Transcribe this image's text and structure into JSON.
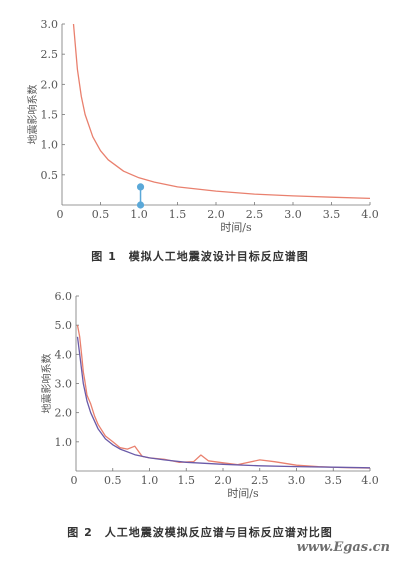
{
  "chart_data": [
    {
      "type": "line",
      "ylabel": "地震影响系数",
      "xlabel": "时间/s",
      "xlim": [
        0,
        4.0
      ],
      "ylim": [
        0,
        3.0
      ],
      "xticks": [
        "0.5",
        "1.0",
        "1.5",
        "2.0",
        "2.5",
        "3.0",
        "3.5",
        "4.0"
      ],
      "yticks": [
        "0.5",
        "1.0",
        "1.5",
        "2.0",
        "2.5",
        "3.0"
      ],
      "series": [
        {
          "color": "#e9806e",
          "x": [
            0.15,
            0.2,
            0.25,
            0.3,
            0.4,
            0.5,
            0.6,
            0.8,
            1.0,
            1.2,
            1.5,
            2.0,
            2.5,
            3.0,
            3.5,
            4.0
          ],
          "y": [
            3.0,
            2.25,
            1.8,
            1.5,
            1.13,
            0.9,
            0.75,
            0.56,
            0.45,
            0.38,
            0.3,
            0.23,
            0.18,
            0.15,
            0.13,
            0.11
          ]
        }
      ],
      "markers": [
        {
          "x": 1.02,
          "y": 0.3,
          "color": "#5aa8d8"
        },
        {
          "x": 1.02,
          "y": 0.0,
          "color": "#5aa8d8"
        }
      ],
      "caption": "图 1　模拟人工地震波设计目标反应谱图"
    },
    {
      "type": "line",
      "ylabel": "地震影响系数",
      "xlabel": "时间/s",
      "xlim": [
        0,
        4.0
      ],
      "ylim": [
        0,
        6.0
      ],
      "xticks": [
        "0.5",
        "1.0",
        "1.5",
        "2.0",
        "2.5",
        "3.0",
        "3.5",
        "4.0"
      ],
      "yticks": [
        "1.0",
        "2.0",
        "3.0",
        "4.0",
        "5.0",
        "6.0"
      ],
      "series": [
        {
          "color": "#e9806e",
          "x": [
            0.02,
            0.05,
            0.08,
            0.1,
            0.12,
            0.15,
            0.2,
            0.25,
            0.3,
            0.4,
            0.5,
            0.6,
            0.7,
            0.8,
            0.9,
            1.0,
            1.2,
            1.4,
            1.6,
            1.7,
            1.8,
            2.0,
            2.2,
            2.5,
            2.7,
            3.0,
            3.3,
            3.6,
            4.0
          ],
          "y": [
            5.0,
            4.6,
            3.9,
            3.4,
            3.1,
            2.6,
            2.3,
            1.9,
            1.6,
            1.2,
            1.0,
            0.8,
            0.75,
            0.85,
            0.5,
            0.45,
            0.4,
            0.3,
            0.32,
            0.55,
            0.35,
            0.28,
            0.22,
            0.38,
            0.32,
            0.2,
            0.15,
            0.12,
            0.1
          ]
        },
        {
          "color": "#6a5aa8",
          "x": [
            0.02,
            0.05,
            0.1,
            0.15,
            0.2,
            0.3,
            0.4,
            0.5,
            0.6,
            0.8,
            1.0,
            1.2,
            1.5,
            2.0,
            2.5,
            3.0,
            3.5,
            4.0
          ],
          "y": [
            4.6,
            4.0,
            3.0,
            2.4,
            2.0,
            1.45,
            1.1,
            0.9,
            0.75,
            0.56,
            0.45,
            0.38,
            0.3,
            0.23,
            0.18,
            0.15,
            0.13,
            0.11
          ]
        }
      ],
      "caption": "图 2　人工地震波模拟反应谱与目标反应谱对比图"
    }
  ],
  "watermark": "www.Egas.cn"
}
